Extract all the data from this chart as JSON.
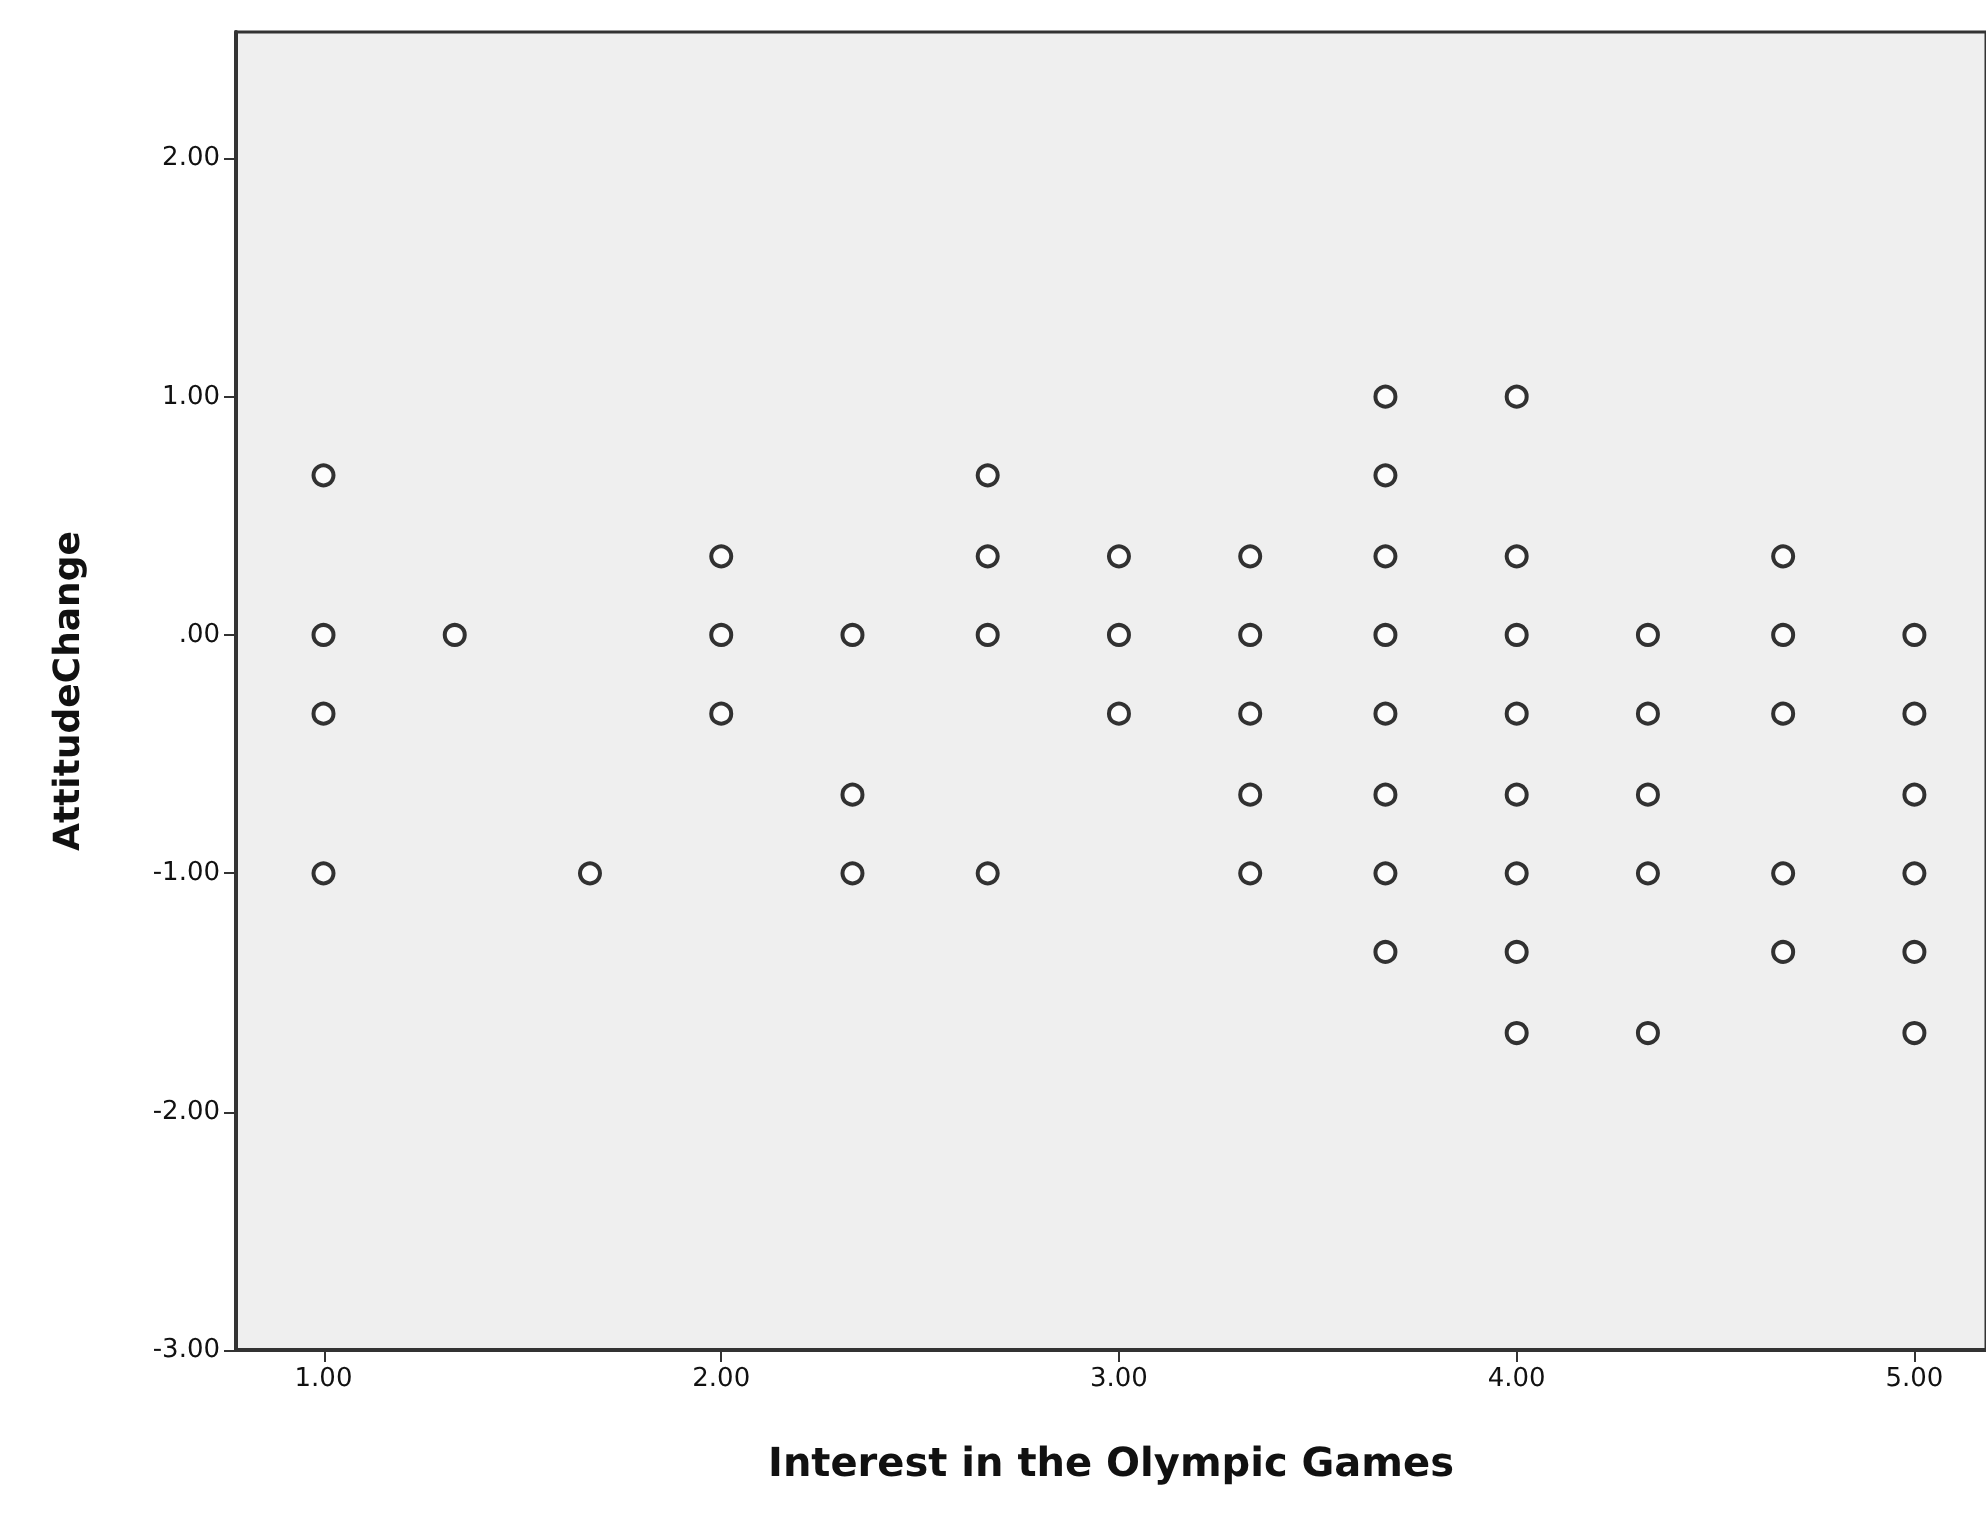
{
  "chart_data": {
    "type": "scatter",
    "xlabel": "Interest in the Olympic Games",
    "ylabel": "AttitudeChange",
    "marker": "circle",
    "grid": false,
    "x": [
      1,
      1,
      1,
      1,
      1.33,
      1.67,
      2,
      2,
      2,
      2.33,
      2.33,
      2.33,
      2.67,
      2.67,
      2.67,
      2.67,
      3,
      3,
      3,
      3.33,
      3.33,
      3.33,
      3.33,
      3.33,
      3.67,
      3.67,
      3.67,
      3.67,
      3.67,
      3.67,
      3.67,
      3.67,
      4,
      4,
      4,
      4,
      4,
      4,
      4,
      4,
      4.33,
      4.33,
      4.33,
      4.33,
      4.33,
      4.67,
      4.67,
      4.67,
      4.67,
      4.67,
      5,
      5,
      5,
      5,
      5,
      5
    ],
    "values": [
      0.67,
      0,
      -0.33,
      -1,
      0,
      -1,
      0.33,
      0,
      -0.33,
      0,
      -0.67,
      -1,
      0.67,
      0.33,
      0,
      -1,
      0.33,
      0,
      -0.33,
      0.33,
      0,
      -0.33,
      -0.67,
      -1,
      1,
      0.67,
      0.33,
      0,
      -0.33,
      -0.67,
      -1,
      -1.33,
      1,
      0.33,
      0,
      -0.33,
      -0.67,
      -1,
      -1.33,
      -1.67,
      0,
      -0.33,
      -0.67,
      -1,
      -1.67,
      0.33,
      0,
      -0.33,
      -1,
      -1.33,
      0,
      -0.33,
      -0.67,
      -1,
      -1.33,
      -1.67
    ],
    "color": "#000000",
    "xlim": [
      0.78,
      5.18
    ],
    "xticks": [
      {
        "value": 1,
        "label": "1.00"
      },
      {
        "value": 2,
        "label": "2.00"
      },
      {
        "value": 3,
        "label": "3.00"
      },
      {
        "value": 4,
        "label": "4.00"
      },
      {
        "value": 5,
        "label": "5.00"
      }
    ],
    "ylim": [
      -3,
      2.53
    ],
    "yticks": [
      {
        "value": -3,
        "label": "-3.00"
      },
      {
        "value": -2,
        "label": "-2.00"
      },
      {
        "value": -1,
        "label": "-1.00"
      },
      {
        "value": 0,
        "label": ".00"
      },
      {
        "value": 1,
        "label": "1.00"
      },
      {
        "value": 2,
        "label": "2.00"
      }
    ]
  }
}
